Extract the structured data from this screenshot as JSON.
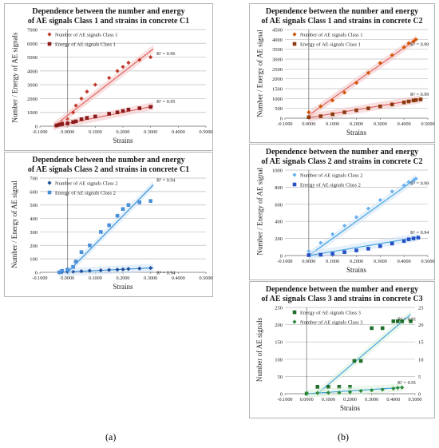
{
  "captions": {
    "a": "(a)",
    "b": "(b)"
  },
  "charts": [
    {
      "id": "a1",
      "title_line1": "Dependence between the number and energy",
      "title_line2": "of AE signals Class 1 and strains in concrete C1",
      "ylabel": "Number / Energy of AE signals",
      "xlabel": "Strains",
      "xticks": [
        "-0.1000",
        "0.0000",
        "0.1000",
        "0.2000",
        "0.3000",
        "0.4000",
        "0.5000"
      ],
      "yticks": [
        "0",
        "1000",
        "2000",
        "3000",
        "4000",
        "5000",
        "6000",
        "7000"
      ]
    },
    {
      "id": "a2",
      "title_line1": "Dependence between the number and energy",
      "title_line2": "of AE signals Class 2 and strains in concrete C1",
      "ylabel": "Number / Energy of AE signal",
      "xlabel": "Strains",
      "xticks": [
        "-0.1000",
        "0.0000",
        "0.1000",
        "0.2000",
        "0.3000",
        "0.4000",
        "0.5000"
      ],
      "yticks": [
        "0",
        "100",
        "200",
        "300",
        "400",
        "500",
        "600",
        "700"
      ]
    },
    {
      "id": "b1",
      "title_line1": "Dependence between the number and energy",
      "title_line2": "of AE signals Class 1 and strains in concrete C2",
      "ylabel": "Number / Energy of AE signal",
      "xlabel": "Strains",
      "xticks": [
        "-0.1000",
        "0.0000",
        "0.1000",
        "0.2000",
        "0.3000",
        "0.4000",
        "0.5000"
      ],
      "yticks": [
        "0",
        "500",
        "1000",
        "1500",
        "2000",
        "2500",
        "3000",
        "3500",
        "4000",
        "4500"
      ]
    },
    {
      "id": "b2",
      "title_line1": "Dependence between the number and energy",
      "title_line2": "of AE signals Class 2 and strains in concrete C2",
      "ylabel": "Number / Energy of AE signal",
      "xlabel": "Strains",
      "xticks": [
        "-0.1000",
        "0.0000",
        "0.1000",
        "0.2000",
        "0.3000",
        "0.4000",
        "0.5000"
      ],
      "yticks": [
        "0",
        "200",
        "400",
        "600",
        "800",
        "1000"
      ]
    },
    {
      "id": "b3",
      "title_line1": "Dependence between the number and energy",
      "title_line2": "of AE signals Class 3 and strains in concrete C3",
      "ylabel": "Number of AE signals",
      "xlabel": "Strains",
      "xticks": [
        "-0.1000",
        "0.0000",
        "0.1000",
        "0.2000",
        "0.3000",
        "0.4000",
        "0.5000"
      ],
      "yticks": [
        "0",
        "50",
        "100",
        "150",
        "200",
        "250"
      ],
      "y2ticks": [
        "0",
        "5",
        "10",
        "15",
        "20",
        "25"
      ]
    }
  ],
  "chart_data": [
    {
      "type": "scatter",
      "title": "Dependence between the number and energy of AE signals Class 1 and strains in concrete C1",
      "xlabel": "Strains",
      "ylabel": "Number / Energy of AE signals",
      "xlim": [
        -0.1,
        0.5
      ],
      "ylim": [
        0,
        7000
      ],
      "legend_position": "top-left",
      "colors": {
        "number": "#c0392b",
        "energy": "#8b1a1a",
        "trend": "#e05a5a",
        "band": "#f4c6c6"
      },
      "series": [
        {
          "name": "Number of AE signals Class 1",
          "marker": "diamond",
          "x": [
            -0.04,
            -0.03,
            -0.02,
            0.0,
            0.02,
            0.03,
            0.05,
            0.07,
            0.1,
            0.15,
            0.18,
            0.2,
            0.22,
            0.26,
            0.3
          ],
          "y": [
            100,
            200,
            300,
            500,
            1000,
            1500,
            2000,
            2500,
            3000,
            3500,
            4000,
            4300,
            4600,
            4800,
            5000
          ],
          "trend": {
            "x": [
              -0.05,
              0.31
            ],
            "y": [
              0,
              5600
            ]
          },
          "r2": "R² = 0.96"
        },
        {
          "name": "Energy of AE signals Class 1",
          "marker": "square",
          "x": [
            -0.04,
            -0.03,
            -0.02,
            0.0,
            0.02,
            0.03,
            0.05,
            0.07,
            0.1,
            0.15,
            0.18,
            0.2,
            0.22,
            0.26,
            0.3
          ],
          "y": [
            50,
            100,
            150,
            200,
            300,
            350,
            500,
            600,
            700,
            900,
            1000,
            1100,
            1200,
            1300,
            1400
          ],
          "trend": {
            "x": [
              -0.05,
              0.31
            ],
            "y": [
              0,
              1450
            ]
          },
          "r2": "R² = 0.95"
        }
      ]
    },
    {
      "type": "scatter",
      "title": "Dependence between the number and energy of AE signals Class 2 and strains in concrete C1",
      "xlabel": "Strains",
      "ylabel": "Number / Energy of AE signal",
      "xlim": [
        -0.1,
        0.5
      ],
      "ylim": [
        0,
        700
      ],
      "legend_position": "top-left",
      "colors": {
        "number": "#1f4e9a",
        "energy": "#4a90d9",
        "trend": "#2f8fd8",
        "band": "#cfe3f7"
      },
      "series": [
        {
          "name": "Number of AE signals Class 2",
          "marker": "diamond",
          "x": [
            -0.03,
            -0.02,
            0.0,
            0.02,
            0.05,
            0.08,
            0.12,
            0.15,
            0.18,
            0.2,
            0.22,
            0.26,
            0.3
          ],
          "y": [
            0,
            2,
            3,
            5,
            8,
            12,
            15,
            18,
            20,
            22,
            25,
            28,
            32
          ],
          "trend": {
            "x": [
              -0.03,
              0.31
            ],
            "y": [
              0,
              33
            ]
          },
          "r2": "R² = 0.94"
        },
        {
          "name": "Energy of AE signals Class 2",
          "marker": "square",
          "x": [
            -0.03,
            -0.02,
            0.0,
            0.02,
            0.03,
            0.05,
            0.08,
            0.12,
            0.15,
            0.18,
            0.2,
            0.22,
            0.26,
            0.3
          ],
          "y": [
            0,
            10,
            20,
            40,
            80,
            150,
            200,
            300,
            350,
            420,
            470,
            500,
            520,
            530
          ],
          "trend": {
            "x": [
              0.0,
              0.31
            ],
            "y": [
              0,
              650
            ]
          },
          "r2": "R² = 0.94"
        }
      ]
    },
    {
      "type": "scatter",
      "title": "Dependence between the number and energy of AE signals Class 1 and strains in concrete C2",
      "xlabel": "Strains",
      "ylabel": "Number / Energy of AE signal",
      "xlim": [
        -0.1,
        0.5
      ],
      "ylim": [
        0,
        4500
      ],
      "legend_position": "top-left",
      "colors": {
        "number": "#d35400",
        "energy": "#8b3a0e",
        "trend": "#e05a5a",
        "band": "#f4c6c6"
      },
      "series": [
        {
          "name": "Number of AE signals Class 1",
          "marker": "diamond",
          "x": [
            0.0,
            0.05,
            0.1,
            0.15,
            0.2,
            0.25,
            0.3,
            0.35,
            0.4,
            0.42,
            0.44,
            0.45
          ],
          "y": [
            300,
            600,
            900,
            1300,
            1800,
            2300,
            2800,
            3200,
            3600,
            3800,
            3900,
            4000
          ],
          "trend": {
            "x": [
              0.0,
              0.45
            ],
            "y": [
              150,
              4000
            ]
          },
          "r2": "R² = 0.99"
        },
        {
          "name": "Energy of AE signals Class 1",
          "marker": "square",
          "x": [
            0.0,
            0.05,
            0.1,
            0.15,
            0.2,
            0.25,
            0.3,
            0.35,
            0.4,
            0.42,
            0.44,
            0.45,
            0.47
          ],
          "y": [
            50,
            100,
            200,
            300,
            400,
            500,
            600,
            700,
            800,
            850,
            900,
            920,
            950
          ],
          "trend": {
            "x": [
              0.0,
              0.47
            ],
            "y": [
              30,
              970
            ]
          },
          "r2": "R² = 0.99"
        }
      ]
    },
    {
      "type": "scatter",
      "title": "Dependence between the number and energy of AE signals Class 2 and strains in concrete C2",
      "xlabel": "Strains",
      "ylabel": "Number / Energy of AE signal",
      "xlim": [
        -0.1,
        0.5
      ],
      "ylim": [
        0,
        1000
      ],
      "legend_position": "top-left",
      "colors": {
        "number": "#6ab0f0",
        "energy": "#2450c8",
        "trend": "#3aa0e0",
        "band": "#cfe3f7"
      },
      "series": [
        {
          "name": "Number of AE signals Class 2",
          "marker": "diamond",
          "x": [
            0.0,
            0.05,
            0.1,
            0.15,
            0.2,
            0.25,
            0.3,
            0.35,
            0.4,
            0.42,
            0.44,
            0.45
          ],
          "y": [
            50,
            150,
            250,
            350,
            450,
            550,
            650,
            750,
            820,
            860,
            880,
            900
          ],
          "trend": {
            "x": [
              0.0,
              0.45
            ],
            "y": [
              0,
              900
            ]
          },
          "r2": "R² = 0.99"
        },
        {
          "name": "Energy of AE signals Class 2",
          "marker": "square",
          "x": [
            0.0,
            0.05,
            0.1,
            0.15,
            0.2,
            0.25,
            0.3,
            0.35,
            0.4,
            0.42,
            0.44,
            0.46
          ],
          "y": [
            5,
            10,
            20,
            40,
            60,
            80,
            110,
            140,
            170,
            190,
            200,
            210
          ],
          "trend": {
            "x": [
              0.0,
              0.46
            ],
            "y": [
              0,
              215
            ]
          },
          "r2": "R² = 0.94"
        }
      ]
    },
    {
      "type": "scatter",
      "title": "Dependence between the number and energy of AE signals Class 3 and strains in concrete C3",
      "xlabel": "Strains",
      "ylabel": "Number of AE signals",
      "xlim": [
        -0.1,
        0.5
      ],
      "ylim": [
        0,
        250
      ],
      "y2lim": [
        0,
        25
      ],
      "legend_position": "top-left",
      "colors": {
        "number": "#2e8b3a",
        "energy": "#1f6e2a",
        "trend": "#3aa0e0",
        "band": "#d8f0d8"
      },
      "series": [
        {
          "name": "Energy of AE signals Class 3",
          "marker": "square",
          "axis": "y2",
          "x": [
            0.0,
            0.05,
            0.1,
            0.15,
            0.2,
            0.22,
            0.25,
            0.3,
            0.35,
            0.4,
            0.42,
            0.44,
            0.48
          ],
          "y": [
            0,
            2,
            2,
            2,
            2,
            9.5,
            9.5,
            19,
            19,
            21,
            21,
            21,
            21
          ],
          "trend": {
            "x": [
              0.05,
              0.48
            ],
            "y": [
              0,
              23
            ]
          },
          "r2": "R² = 0.91"
        },
        {
          "name": "Number of AE signals Class 3",
          "marker": "diamond",
          "axis": "y",
          "x": [
            0.0,
            0.05,
            0.1,
            0.15,
            0.2,
            0.25,
            0.3,
            0.35,
            0.4,
            0.42,
            0.44
          ],
          "y": [
            2,
            2,
            3,
            3,
            5,
            8,
            10,
            12,
            15,
            17,
            18
          ],
          "trend": {
            "x": [
              0.0,
              0.44
            ],
            "y": [
              0,
              18
            ]
          },
          "r2": "R² = 0.91"
        }
      ]
    }
  ]
}
